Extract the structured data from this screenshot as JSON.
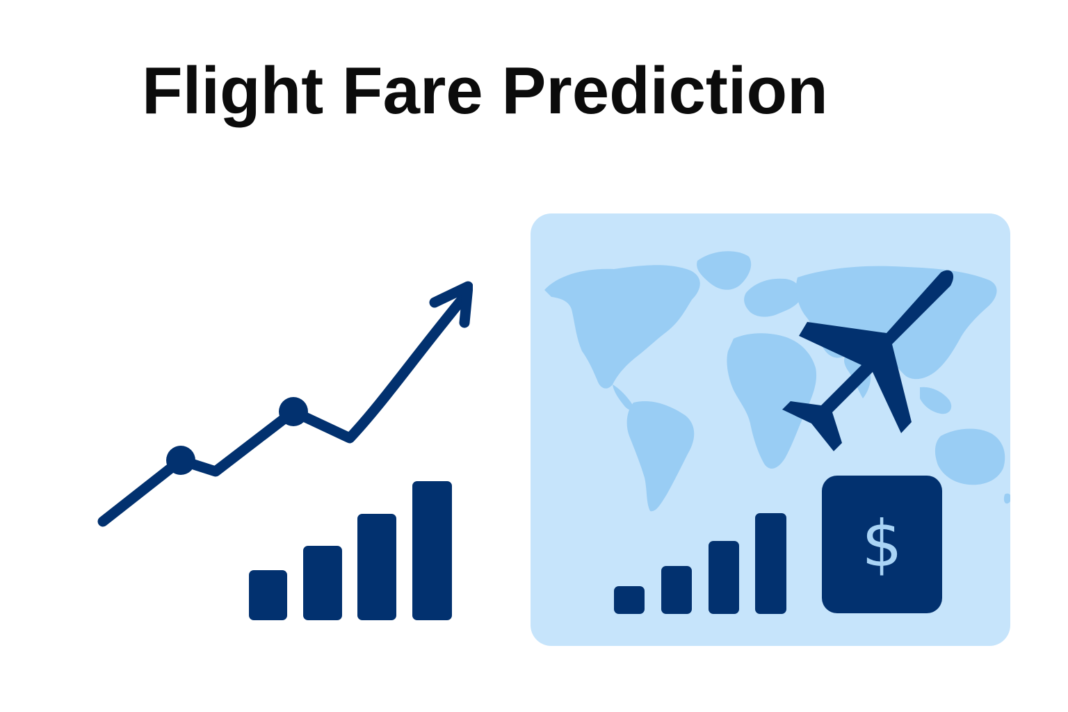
{
  "page": {
    "title": "Flight Fare Prediction"
  },
  "icons": {
    "trend": "trend-line-arrow-icon",
    "bars_left": "bar-chart-icon",
    "map": "world-map-icon",
    "plane": "airplane-icon",
    "bars_right": "signal-bars-icon",
    "currency": "dollar-sign-icon"
  },
  "dollar_tile": {
    "symbol": "$"
  },
  "colors": {
    "primary": "#02316f",
    "card_background": "#c6e4fb",
    "map_land": "#99cdf4",
    "dollar_symbol": "#a9d4f6",
    "title": "#0b0b0b"
  }
}
